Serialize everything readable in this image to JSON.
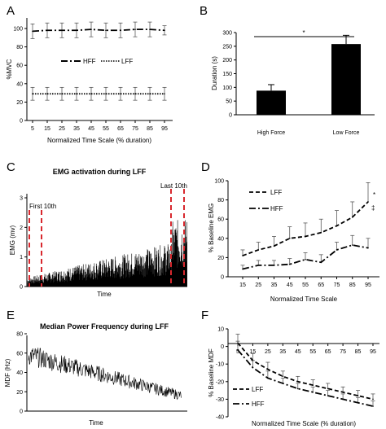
{
  "chart_data": [
    {
      "panel": "A",
      "type": "line",
      "title": "",
      "xlabel": "Normalized Time Scale (% duration)",
      "ylabel": "%MVC",
      "x": [
        5,
        15,
        25,
        35,
        45,
        55,
        65,
        75,
        85,
        95
      ],
      "xticks": [
        "5",
        "15",
        "25",
        "35",
        "45",
        "55",
        "65",
        "75",
        "85",
        "95"
      ],
      "yticks": [
        "0",
        "20",
        "40",
        "60",
        "80",
        "100"
      ],
      "ylim": [
        0,
        110
      ],
      "legend_position": "center",
      "series": [
        {
          "name": "HFF",
          "style": "dashdot",
          "values": [
            97,
            98,
            98,
            98,
            99,
            98,
            98,
            99,
            99,
            98
          ],
          "err": [
            8,
            8,
            8,
            8,
            8,
            8,
            8,
            8,
            8,
            5
          ]
        },
        {
          "name": "LFF",
          "style": "dotted",
          "values": [
            29,
            29,
            29,
            29,
            29,
            29,
            29,
            29,
            29,
            29
          ],
          "err": [
            7,
            7,
            7,
            7,
            7,
            7,
            7,
            7,
            7,
            7
          ]
        }
      ]
    },
    {
      "panel": "B",
      "type": "bar",
      "title": "",
      "xlabel": "",
      "ylabel": "Duration (s)",
      "categories": [
        "High Force",
        "Low Force"
      ],
      "values": [
        88,
        258
      ],
      "err": [
        22,
        32
      ],
      "yticks": [
        "0",
        "50",
        "100",
        "150",
        "200",
        "250",
        "300"
      ],
      "ylim": [
        0,
        300
      ],
      "significance": "*"
    },
    {
      "panel": "C",
      "type": "line",
      "title": "EMG activation during LFF",
      "xlabel": "Time",
      "ylabel": "EMG (mv)",
      "yticks": [
        "0",
        "1",
        "2",
        "3"
      ],
      "ylim": [
        0,
        3
      ],
      "annotations": [
        "First 10th",
        "Last 10th"
      ]
    },
    {
      "panel": "D",
      "type": "line",
      "title": "",
      "xlabel": "Normalized Time Scale",
      "ylabel": "% Baseline EMG",
      "x": [
        15,
        25,
        35,
        45,
        55,
        65,
        75,
        85,
        95
      ],
      "xticks": [
        "15",
        "25",
        "35",
        "45",
        "55",
        "65",
        "75",
        "85",
        "95"
      ],
      "yticks": [
        "0",
        "20",
        "40",
        "60",
        "80",
        "100"
      ],
      "ylim": [
        0,
        100
      ],
      "legend_position": "top-left",
      "markers": [
        "*",
        "‡"
      ],
      "series": [
        {
          "name": "LFF",
          "style": "dashed",
          "values": [
            22,
            28,
            32,
            40,
            42,
            46,
            53,
            62,
            78
          ],
          "err": [
            6,
            8,
            10,
            12,
            14,
            14,
            16,
            16,
            20
          ]
        },
        {
          "name": "HFF",
          "style": "dashdot",
          "values": [
            8,
            12,
            12,
            13,
            18,
            15,
            28,
            33,
            30
          ],
          "err": [
            4,
            5,
            5,
            6,
            7,
            8,
            8,
            10,
            10
          ]
        }
      ]
    },
    {
      "panel": "E",
      "type": "line",
      "title": "Median Power Frequency during LFF",
      "xlabel": "Time",
      "ylabel": "MDF (Hz)",
      "yticks": [
        "0",
        "20",
        "40",
        "60",
        "80"
      ],
      "ylim": [
        0,
        80
      ]
    },
    {
      "panel": "F",
      "type": "line",
      "title": "",
      "xlabel": "Normalized Time Scale (% duration)",
      "ylabel": "% Baseline MDF",
      "x": [
        5,
        15,
        25,
        35,
        45,
        55,
        65,
        75,
        85,
        95
      ],
      "xticks": [
        "5",
        "15",
        "25",
        "35",
        "45",
        "55",
        "65",
        "75",
        "85",
        "95"
      ],
      "yticks": [
        "10",
        "0",
        "-10",
        "-20",
        "-30",
        "-40"
      ],
      "ylim": [
        -40,
        10
      ],
      "legend_position": "bottom-left",
      "series": [
        {
          "name": "LFF",
          "style": "dashed",
          "values": [
            2,
            -8,
            -13,
            -17,
            -20,
            -22,
            -24,
            -26,
            -28,
            -30
          ],
          "err": [
            5,
            4,
            4,
            3,
            3,
            3,
            3,
            3,
            3,
            3
          ]
        },
        {
          "name": "HFF",
          "style": "dashdot",
          "values": [
            -2,
            -12,
            -18,
            -21,
            -24,
            -26,
            -28,
            -30,
            -32,
            -34
          ],
          "err": [
            5,
            4,
            4,
            3,
            3,
            3,
            3,
            3,
            3,
            3
          ]
        }
      ]
    }
  ]
}
